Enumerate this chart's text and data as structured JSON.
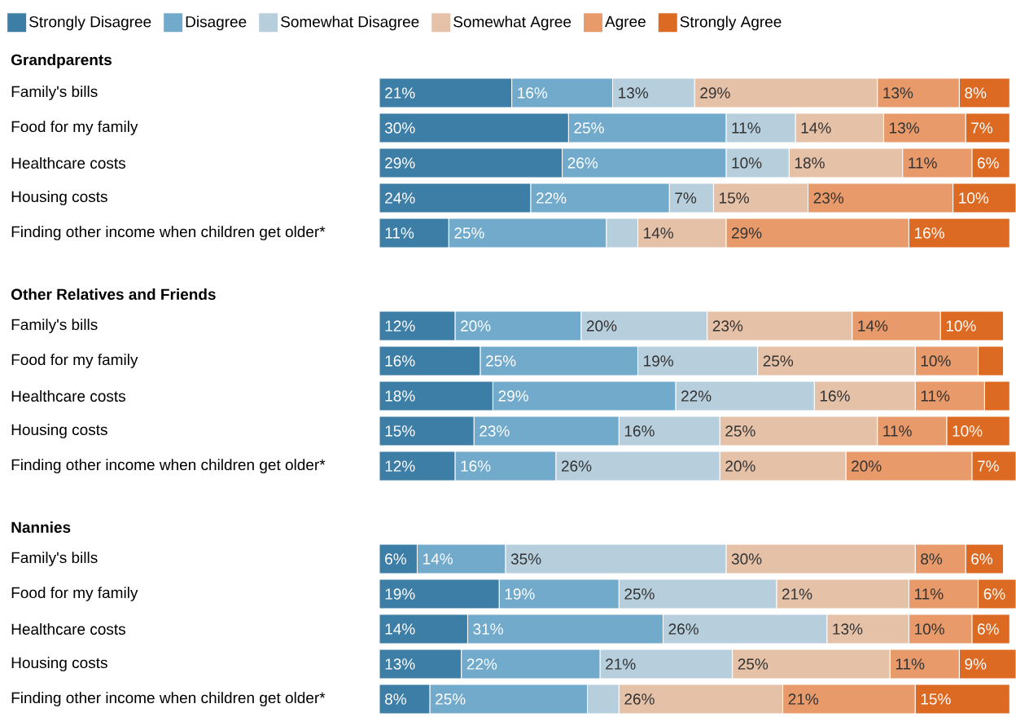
{
  "chart_data": [
    {
      "type": "bar",
      "orientation": "horizontal",
      "stacked": true,
      "legend": "top",
      "title": "Grandparents",
      "categories": [
        "Family's bills",
        "Food for my family",
        "Healthcare costs",
        "Housing costs",
        "Finding other income when children get older*"
      ],
      "series": [
        {
          "name": "Strongly Disagree",
          "color": "#3d7ea6",
          "values": [
            21,
            30,
            29,
            24,
            11
          ],
          "value_labels": [
            "21%",
            "30%",
            "29%",
            "24%",
            "11%"
          ]
        },
        {
          "name": "Disagree",
          "color": "#72aacb",
          "values": [
            16,
            25,
            26,
            22,
            25
          ],
          "value_labels": [
            "16%",
            "25%",
            "26%",
            "22%",
            "25%"
          ]
        },
        {
          "name": "Somewhat Disagree",
          "color": "#b7cfdd",
          "values": [
            13,
            11,
            10,
            7,
            5
          ],
          "value_labels": [
            "13%",
            "11%",
            "10%",
            "7%",
            null
          ]
        },
        {
          "name": "Somewhat Agree",
          "color": "#e5c1a8",
          "values": [
            29,
            14,
            18,
            15,
            14
          ],
          "value_labels": [
            "29%",
            "14%",
            "18%",
            "15%",
            "14%"
          ]
        },
        {
          "name": "Agree",
          "color": "#e89a6a",
          "values": [
            13,
            13,
            11,
            23,
            29
          ],
          "value_labels": [
            "13%",
            "13%",
            "11%",
            "23%",
            "29%"
          ]
        },
        {
          "name": "Strongly Agree",
          "color": "#dd6a23",
          "values": [
            8,
            7,
            6,
            10,
            16
          ],
          "value_labels": [
            "8%",
            "7%",
            "6%",
            "10%",
            "16%"
          ]
        }
      ]
    },
    {
      "type": "bar",
      "orientation": "horizontal",
      "stacked": true,
      "title": "Other Relatives and Friends",
      "categories": [
        "Family's bills",
        "Food for my family",
        "Healthcare costs",
        "Housing costs",
        "Finding other income when children get older*"
      ],
      "series": [
        {
          "color": "#3d7ea6",
          "values": [
            12,
            16,
            18,
            15,
            12
          ],
          "value_labels": [
            "12%",
            "16%",
            "18%",
            "15%",
            "12%"
          ]
        },
        {
          "color": "#72aacb",
          "values": [
            20,
            25,
            29,
            23,
            16
          ],
          "value_labels": [
            "20%",
            "25%",
            "29%",
            "23%",
            "16%"
          ]
        },
        {
          "color": "#b7cfdd",
          "values": [
            20,
            19,
            22,
            16,
            26
          ],
          "value_labels": [
            "20%",
            "19%",
            "22%",
            "16%",
            "26%"
          ]
        },
        {
          "color": "#e5c1a8",
          "values": [
            23,
            25,
            16,
            25,
            20
          ],
          "value_labels": [
            "23%",
            "25%",
            "16%",
            "25%",
            "20%"
          ]
        },
        {
          "color": "#e89a6a",
          "values": [
            14,
            10,
            11,
            11,
            20
          ],
          "value_labels": [
            "14%",
            "10%",
            "11%",
            "11%",
            "20%"
          ]
        },
        {
          "color": "#dd6a23",
          "values": [
            10,
            4,
            4,
            10,
            7
          ],
          "value_labels": [
            "10%",
            null,
            null,
            "10%",
            "7%"
          ]
        }
      ]
    },
    {
      "type": "bar",
      "orientation": "horizontal",
      "stacked": true,
      "title": "Nannies",
      "categories": [
        "Family's bills",
        "Food for my family",
        "Healthcare costs",
        "Housing costs",
        "Finding other income when children get older*"
      ],
      "series": [
        {
          "color": "#3d7ea6",
          "values": [
            6,
            19,
            14,
            13,
            8
          ],
          "value_labels": [
            "6%",
            "19%",
            "14%",
            "13%",
            "8%"
          ]
        },
        {
          "color": "#72aacb",
          "values": [
            14,
            19,
            31,
            22,
            25
          ],
          "value_labels": [
            "14%",
            "19%",
            "31%",
            "22%",
            "25%"
          ]
        },
        {
          "color": "#b7cfdd",
          "values": [
            35,
            25,
            26,
            21,
            5
          ],
          "value_labels": [
            "35%",
            "25%",
            "26%",
            "21%",
            null
          ]
        },
        {
          "color": "#e5c1a8",
          "values": [
            30,
            21,
            13,
            25,
            26
          ],
          "value_labels": [
            "30%",
            "21%",
            "13%",
            "25%",
            "26%"
          ]
        },
        {
          "color": "#e89a6a",
          "values": [
            8,
            11,
            10,
            11,
            21
          ],
          "value_labels": [
            "8%",
            "11%",
            "10%",
            "11%",
            "21%"
          ]
        },
        {
          "color": "#dd6a23",
          "values": [
            6,
            6,
            6,
            9,
            15
          ],
          "value_labels": [
            "6%",
            "6%",
            "6%",
            "9%",
            "15%"
          ]
        }
      ]
    }
  ]
}
